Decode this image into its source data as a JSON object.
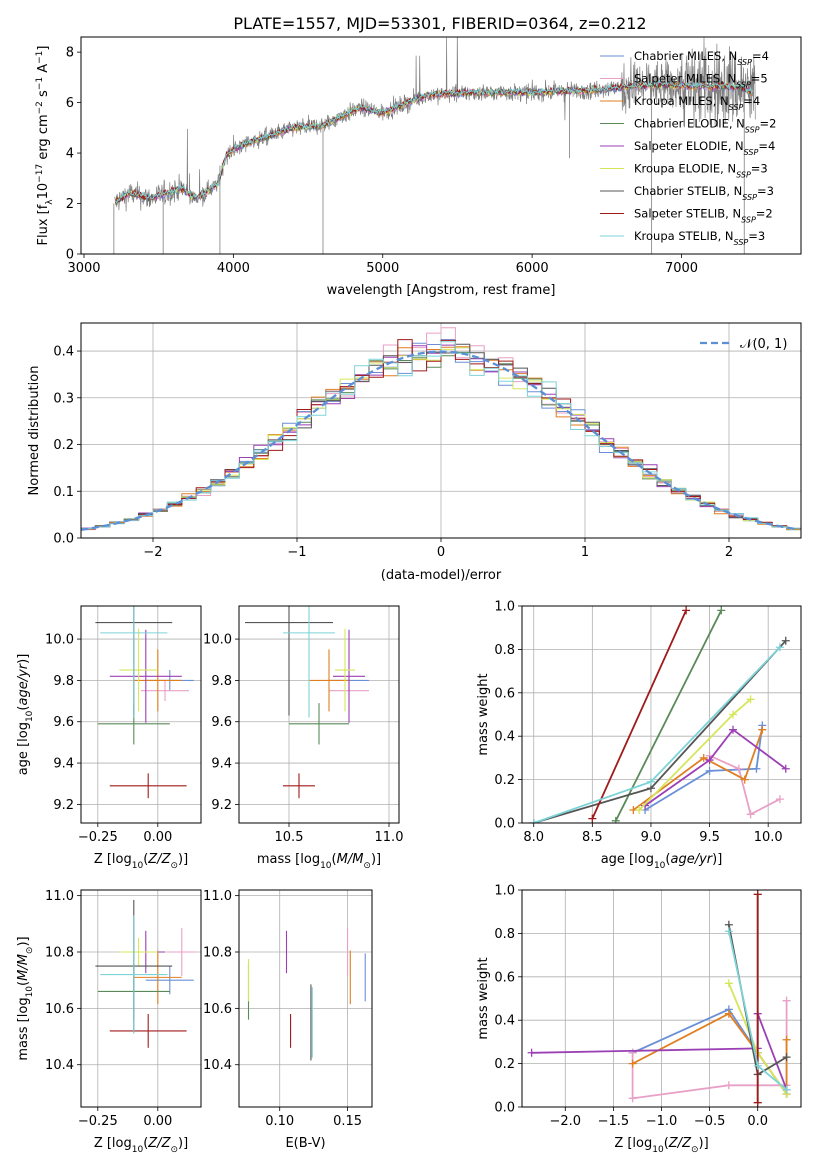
{
  "colors": {
    "Chabrier MILES": "#6a8fd6",
    "Salpeter MILES": "#e8a0c6",
    "Kroupa MILES": "#e07f22",
    "Chabrier ELODIE": "#5a8a5a",
    "Salpeter ELODIE": "#9b3fb5",
    "Kroupa ELODIE": "#d6e65a",
    "Chabrier STELIB": "#555555",
    "Salpeter STELIB": "#a11a1a",
    "Kroupa STELIB": "#7dd3d8",
    "data": "#7f7f7f",
    "grid": "#b0b0b0",
    "normal": "#5b8fd6"
  },
  "chart_data": [
    {
      "type": "line",
      "title": "PLATE=1557, MJD=53301, FIBERID=0364, z=0.212",
      "xlabel": "wavelength [Angstrom, rest frame]",
      "ylabel": "Flux [f_λ 10^-17 erg cm^-2 s^-1 A^-1]",
      "xlim": [
        2980,
        7800
      ],
      "ylim": [
        0,
        8.6
      ],
      "xticks": [
        "3000",
        "4000",
        "5000",
        "6000",
        "7000"
      ],
      "yticks": [
        "0",
        "2",
        "4",
        "6",
        "8"
      ],
      "legend_position": "upper-right",
      "legend": [
        {
          "name": "Chabrier MILES, N",
          "sub": "SSP",
          "suffix": "=4"
        },
        {
          "name": "Salpeter MILES, N",
          "sub": "SSP",
          "suffix": "=5"
        },
        {
          "name": "Kroupa MILES, N",
          "sub": "SSP",
          "suffix": "=4"
        },
        {
          "name": "Chabrier ELODIE, N",
          "sub": "SSP",
          "suffix": "=2"
        },
        {
          "name": "Salpeter ELODIE, N",
          "sub": "SSP",
          "suffix": "=4"
        },
        {
          "name": "Kroupa ELODIE, N",
          "sub": "SSP",
          "suffix": "=3"
        },
        {
          "name": "Chabrier STELIB, N",
          "sub": "SSP",
          "suffix": "=3"
        },
        {
          "name": "Salpeter STELIB, N",
          "sub": "SSP",
          "suffix": "=2"
        },
        {
          "name": "Kroupa STELIB, N",
          "sub": "SSP",
          "suffix": "=3"
        }
      ],
      "spectrum_knots": {
        "wavelength": [
          3200,
          3300,
          3450,
          3650,
          3750,
          3900,
          3950,
          4050,
          4250,
          4400,
          4600,
          4850,
          5000,
          5300,
          5600,
          6000,
          6400,
          6800,
          7400,
          7500
        ],
        "flux": [
          2.0,
          2.4,
          2.2,
          2.6,
          2.2,
          2.8,
          3.9,
          4.3,
          4.7,
          5.0,
          5.1,
          5.8,
          5.6,
          6.3,
          6.4,
          6.4,
          6.5,
          6.7,
          6.6,
          6.3
        ]
      }
    },
    {
      "type": "step-histogram",
      "xlabel": "(data-model)/error",
      "ylabel": "Normed distribution",
      "xlim": [
        -2.5,
        2.5
      ],
      "ylim": [
        0,
        0.46
      ],
      "xticks": [
        "−2",
        "−1",
        "0",
        "1",
        "2"
      ],
      "yticks": [
        "0.0",
        "0.1",
        "0.2",
        "0.3",
        "0.4"
      ],
      "normal_label": "𝒩(0, 1)",
      "bin_width": 0.1
    },
    {
      "type": "errorbar",
      "xlabel": "Z [log10(Z/Z⊙)]",
      "ylabel": "age  [log10(age/yr)]",
      "xlim": [
        -0.32,
        0.18
      ],
      "ylim": [
        9.11,
        10.16
      ],
      "xticks": [
        "−0.25",
        "0.00"
      ],
      "yticks": [
        "9.2",
        "9.4",
        "9.6",
        "9.8",
        "10.0"
      ],
      "points": [
        {
          "series": "Chabrier MILES",
          "x": 0.05,
          "xerr": 0.1,
          "y": 9.8,
          "yerr": 0.1
        },
        {
          "series": "Salpeter MILES",
          "x": 0.03,
          "xerr": 0.1,
          "y": 9.75,
          "yerr": 0.1
        },
        {
          "series": "Kroupa MILES",
          "x": 0.0,
          "xerr": 0.1,
          "y": 9.8,
          "yerr": 0.3
        },
        {
          "series": "Chabrier ELODIE",
          "x": -0.1,
          "xerr": 0.15,
          "y": 9.59,
          "yerr": 0.2
        },
        {
          "series": "Salpeter ELODIE",
          "x": -0.05,
          "xerr": 0.15,
          "y": 9.82,
          "yerr": 0.45
        },
        {
          "series": "Kroupa ELODIE",
          "x": -0.08,
          "xerr": 0.08,
          "y": 9.85,
          "yerr": 0.4
        },
        {
          "series": "Chabrier STELIB",
          "x": -0.1,
          "xerr": 0.16,
          "y": 10.08,
          "yerr": 0.9
        },
        {
          "series": "Salpeter STELIB",
          "x": -0.04,
          "xerr": 0.16,
          "y": 9.29,
          "yerr": 0.12
        },
        {
          "series": "Kroupa STELIB",
          "x": -0.1,
          "xerr": 0.14,
          "y": 10.03,
          "yerr": 0.82
        }
      ]
    },
    {
      "type": "errorbar",
      "xlabel": "mass [log10(M/M⊙)]",
      "xlim": [
        10.25,
        11.05
      ],
      "ylim": [
        9.11,
        10.16
      ],
      "xticks": [
        "10.5",
        "11.0"
      ],
      "yticks": [
        "9.2",
        "9.4",
        "9.6",
        "9.8",
        "10.0"
      ],
      "points": [
        {
          "series": "Chabrier MILES",
          "x": 10.8,
          "xerr": 0.1,
          "y": 9.8,
          "yerr": 0.1
        },
        {
          "series": "Salpeter MILES",
          "x": 10.8,
          "xerr": 0.1,
          "y": 9.75,
          "yerr": 0.1
        },
        {
          "series": "Kroupa MILES",
          "x": 10.7,
          "xerr": 0.1,
          "y": 9.8,
          "yerr": 0.3
        },
        {
          "series": "Chabrier ELODIE",
          "x": 10.65,
          "xerr": 0.15,
          "y": 9.59,
          "yerr": 0.2
        },
        {
          "series": "Salpeter ELODIE",
          "x": 10.8,
          "xerr": 0.08,
          "y": 9.82,
          "yerr": 0.45
        },
        {
          "series": "Kroupa ELODIE",
          "x": 10.78,
          "xerr": 0.05,
          "y": 9.85,
          "yerr": 0.4
        },
        {
          "series": "Chabrier STELIB",
          "x": 10.5,
          "xerr": 0.22,
          "y": 10.08,
          "yerr": 0.9
        },
        {
          "series": "Salpeter STELIB",
          "x": 10.55,
          "xerr": 0.08,
          "y": 9.29,
          "yerr": 0.12
        },
        {
          "series": "Kroupa STELIB",
          "x": 10.6,
          "xerr": 0.13,
          "y": 10.03,
          "yerr": 0.82
        }
      ]
    },
    {
      "type": "line",
      "xlabel": "age  [log10(age/yr)]",
      "ylabel": "mass weight",
      "xlim": [
        7.9,
        10.28
      ],
      "ylim": [
        0,
        1.0
      ],
      "xticks": [
        "8.0",
        "8.5",
        "9.0",
        "9.5",
        "10.0"
      ],
      "yticks": [
        "0.0",
        "0.2",
        "0.4",
        "0.6",
        "0.8",
        "1.0"
      ],
      "series": [
        {
          "name": "Chabrier MILES",
          "x": [
            8.95,
            9.5,
            9.9,
            9.95
          ],
          "y": [
            0.06,
            0.24,
            0.25,
            0.45
          ]
        },
        {
          "name": "Salpeter MILES",
          "x": [
            9.5,
            9.75,
            9.85,
            10.1
          ],
          "y": [
            0.31,
            0.25,
            0.04,
            0.11
          ]
        },
        {
          "name": "Kroupa MILES",
          "x": [
            8.85,
            9.45,
            9.8,
            9.95
          ],
          "y": [
            0.06,
            0.3,
            0.2,
            0.43
          ]
        },
        {
          "name": "Chabrier ELODIE",
          "x": [
            8.7,
            9.6
          ],
          "y": [
            0.01,
            0.98
          ]
        },
        {
          "name": "Salpeter ELODIE",
          "x": [
            8.95,
            9.5,
            9.7,
            10.15
          ],
          "y": [
            0.08,
            0.29,
            0.43,
            0.25
          ]
        },
        {
          "name": "Kroupa ELODIE",
          "x": [
            8.9,
            9.7,
            9.85
          ],
          "y": [
            0.06,
            0.5,
            0.57
          ]
        },
        {
          "name": "Chabrier STELIB",
          "x": [
            8.0,
            9.0,
            10.15
          ],
          "y": [
            0.0,
            0.16,
            0.84
          ]
        },
        {
          "name": "Salpeter STELIB",
          "x": [
            8.5,
            9.3
          ],
          "y": [
            0.02,
            0.98
          ]
        },
        {
          "name": "Kroupa STELIB",
          "x": [
            8.0,
            9.0,
            10.1
          ],
          "y": [
            0.0,
            0.19,
            0.81
          ]
        }
      ]
    },
    {
      "type": "errorbar",
      "xlabel": "Z [log10(Z/Z⊙)]",
      "ylabel": "mass [log10(M/M⊙)]",
      "xlim": [
        -0.32,
        0.18
      ],
      "ylim": [
        10.25,
        11.02
      ],
      "xticks": [
        "−0.25",
        "0.00"
      ],
      "yticks": [
        "10.4",
        "10.6",
        "10.8",
        "11.0"
      ],
      "points": [
        {
          "series": "Chabrier MILES",
          "x": 0.05,
          "xerr": 0.1,
          "y": 10.7,
          "yerr": 0.1
        },
        {
          "series": "Salpeter MILES",
          "x": 0.1,
          "xerr": 0.06,
          "y": 10.8,
          "yerr": 0.17
        },
        {
          "series": "Kroupa MILES",
          "x": 0.0,
          "xerr": 0.1,
          "y": 10.71,
          "yerr": 0.19
        },
        {
          "series": "Chabrier ELODIE",
          "x": -0.1,
          "xerr": 0.15,
          "y": 10.66,
          "yerr": 0.2
        },
        {
          "series": "Salpeter ELODIE",
          "x": -0.05,
          "xerr": 0.08,
          "y": 10.8,
          "yerr": 0.15
        },
        {
          "series": "Kroupa ELODIE",
          "x": -0.08,
          "xerr": 0.08,
          "y": 10.8,
          "yerr": 0.1
        },
        {
          "series": "Chabrier STELIB",
          "x": -0.1,
          "xerr": 0.16,
          "y": 10.75,
          "yerr": 0.47
        },
        {
          "series": "Salpeter STELIB",
          "x": -0.04,
          "xerr": 0.16,
          "y": 10.52,
          "yerr": 0.12
        },
        {
          "series": "Kroupa STELIB",
          "x": -0.1,
          "xerr": 0.14,
          "y": 10.72,
          "yerr": 0.42
        }
      ]
    },
    {
      "type": "errorbar",
      "xlabel": "E(B-V)",
      "xlim": [
        0.07,
        0.168
      ],
      "ylim": [
        10.25,
        11.02
      ],
      "xticks": [
        "0.10",
        "0.15"
      ],
      "yticks": [
        "10.4",
        "10.6",
        "10.8",
        "11.0"
      ],
      "points": [
        {
          "series": "Chabrier MILES",
          "x": 0.163,
          "xerr": 0.0,
          "y": 10.71,
          "yerr": 0.17
        },
        {
          "series": "Salpeter MILES",
          "x": 0.15,
          "xerr": 0.0,
          "y": 10.8,
          "yerr": 0.17
        },
        {
          "series": "Kroupa MILES",
          "x": 0.152,
          "xerr": 0.0,
          "y": 10.71,
          "yerr": 0.19
        },
        {
          "series": "Chabrier ELODIE",
          "x": 0.077,
          "xerr": 0.0,
          "y": 10.66,
          "yerr": 0.2
        },
        {
          "series": "Salpeter ELODIE",
          "x": 0.105,
          "xerr": 0.0,
          "y": 10.8,
          "yerr": 0.15
        },
        {
          "series": "Kroupa ELODIE",
          "x": 0.077,
          "xerr": 0.0,
          "y": 10.7,
          "yerr": 0.15
        },
        {
          "series": "Chabrier STELIB",
          "x": 0.123,
          "xerr": 0.0,
          "y": 10.55,
          "yerr": 0.27
        },
        {
          "series": "Salpeter STELIB",
          "x": 0.108,
          "xerr": 0.0,
          "y": 10.52,
          "yerr": 0.12
        },
        {
          "series": "Kroupa STELIB",
          "x": 0.124,
          "xerr": 0.0,
          "y": 10.55,
          "yerr": 0.25
        }
      ]
    },
    {
      "type": "line",
      "xlabel": "Z [log10(Z/Z⊙)]",
      "ylabel": "mass weight",
      "xlim": [
        -2.45,
        0.45
      ],
      "ylim": [
        0,
        1.0
      ],
      "xticks": [
        "−2.0",
        "−1.5",
        "−1.0",
        "−0.5",
        "0.0"
      ],
      "yticks": [
        "0.0",
        "0.2",
        "0.4",
        "0.6",
        "0.8",
        "1.0"
      ],
      "series": [
        {
          "name": "Chabrier MILES",
          "x": [
            -1.3,
            -0.3,
            0.0,
            0.3
          ],
          "y": [
            0.25,
            0.45,
            0.25,
            0.06
          ]
        },
        {
          "name": "Salpeter MILES",
          "x": [
            -1.3,
            -1.3,
            -0.3,
            0.0,
            0.3,
            0.3
          ],
          "y": [
            0.25,
            0.04,
            0.1,
            0.1,
            0.1,
            0.49
          ]
        },
        {
          "name": "Kroupa MILES",
          "x": [
            -1.3,
            -0.3,
            0.0,
            0.3,
            0.3
          ],
          "y": [
            0.2,
            0.43,
            0.25,
            0.06,
            0.31
          ]
        },
        {
          "name": "Chabrier ELODIE",
          "x": [
            0.0,
            0.0
          ],
          "y": [
            0.02,
            0.98
          ]
        },
        {
          "name": "Salpeter ELODIE",
          "x": [
            -2.35,
            0.0,
            0.0,
            0.3
          ],
          "y": [
            0.25,
            0.27,
            0.43,
            0.08
          ]
        },
        {
          "name": "Kroupa ELODIE",
          "x": [
            -0.3,
            0.0,
            0.3
          ],
          "y": [
            0.57,
            0.25,
            0.06
          ]
        },
        {
          "name": "Chabrier STELIB",
          "x": [
            -0.3,
            0.0,
            0.3
          ],
          "y": [
            0.84,
            0.15,
            0.23
          ]
        },
        {
          "name": "Salpeter STELIB",
          "x": [
            0.0,
            0.0
          ],
          "y": [
            0.02,
            0.98
          ]
        },
        {
          "name": "Kroupa STELIB",
          "x": [
            -0.3,
            0.0,
            0.3
          ],
          "y": [
            0.81,
            0.19,
            0.08
          ]
        }
      ]
    }
  ]
}
